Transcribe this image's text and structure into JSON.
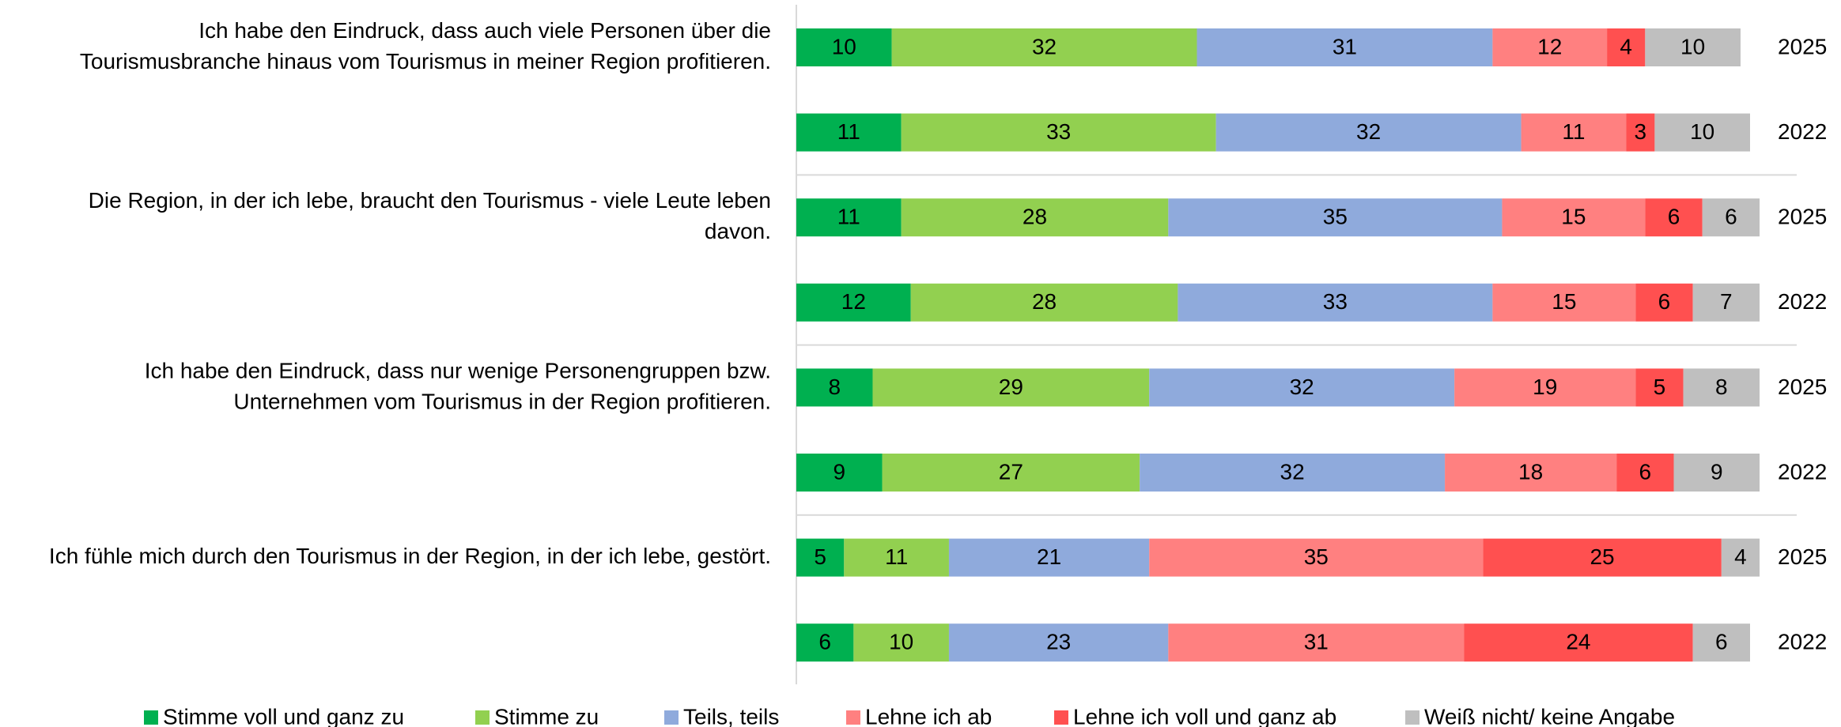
{
  "chart_data": {
    "type": "bar",
    "orientation": "horizontal",
    "stacked": true,
    "group_labels": [
      [
        "Ich habe den Eindruck, dass auch viele Personen über die",
        "Tourismusbranche hinaus vom Tourismus in meiner Region profitieren."
      ],
      [
        "Die Region, in der ich lebe, braucht den Tourismus - viele Leute leben",
        "davon."
      ],
      [
        "Ich habe den Eindruck, dass nur wenige Personengruppen bzw.",
        "Unternehmen vom Tourismus in der Region profitieren."
      ],
      [
        "Ich fühle mich durch den Tourismus in der Region, in der ich lebe, gestört."
      ]
    ],
    "categories": [
      "2025",
      "2022",
      "2025",
      "2022",
      "2025",
      "2022",
      "2025",
      "2022"
    ],
    "xlim": [
      0,
      100
    ],
    "series": [
      {
        "name": "Stimme voll und ganz zu",
        "color": "#00b050",
        "values": [
          10,
          11,
          11,
          12,
          8,
          9,
          5,
          6
        ]
      },
      {
        "name": "Stimme zu",
        "color": "#92d050",
        "values": [
          32,
          33,
          28,
          28,
          29,
          27,
          11,
          10
        ]
      },
      {
        "name": "Teils, teils",
        "color": "#8faadc",
        "values": [
          31,
          32,
          35,
          33,
          32,
          32,
          21,
          23
        ]
      },
      {
        "name": "Lehne ich ab",
        "color": "#ff8080",
        "values": [
          12,
          11,
          15,
          15,
          19,
          18,
          35,
          31
        ]
      },
      {
        "name": "Lehne ich voll und ganz ab",
        "color": "#ff5050",
        "values": [
          4,
          3,
          6,
          6,
          5,
          6,
          25,
          24
        ]
      },
      {
        "name": "Weiß nicht/ keine Angabe",
        "color": "#bfbfbf",
        "values": [
          10,
          10,
          6,
          7,
          8,
          9,
          4,
          6
        ]
      }
    ],
    "legend": "bottom"
  }
}
